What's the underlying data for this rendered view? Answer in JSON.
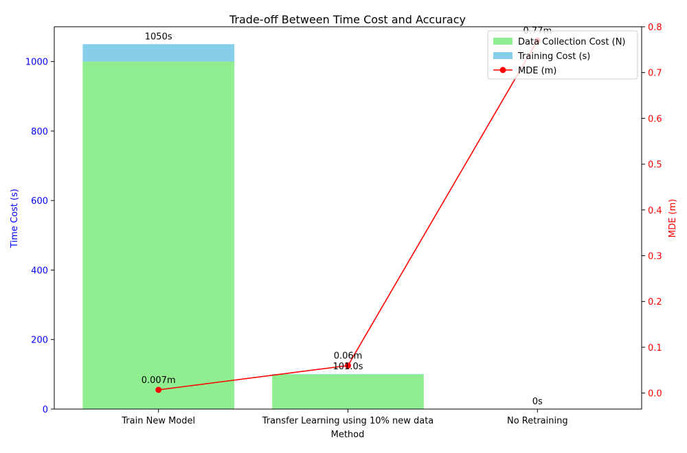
{
  "chart_data": {
    "type": "bar",
    "title": "Trade-off Between Time Cost and Accuracy",
    "xlabel": "Method",
    "ylabel_left": "Time Cost (s)",
    "ylabel_right": "MDE (m)",
    "categories": [
      "Train New Model",
      "Transfer Learning using 10% new data",
      "No Retraining"
    ],
    "bar_series": [
      {
        "name": "Data Collection Cost (N)",
        "values": [
          1000,
          100,
          0
        ],
        "color": "#90ee90"
      },
      {
        "name": "Training Cost (s)",
        "values": [
          50,
          1,
          0
        ],
        "color": "#87ceeb"
      }
    ],
    "line_series": {
      "name": "MDE (m)",
      "values": [
        0.007,
        0.06,
        0.77
      ],
      "color": "#ff0000"
    },
    "bar_labels": [
      "1050s",
      "101.0s",
      "0s"
    ],
    "line_labels": [
      "0.007m",
      "0.06m",
      "0.77m"
    ],
    "ylim_left": [
      0,
      1100
    ],
    "yticks_left": [
      0,
      200,
      400,
      600,
      800,
      1000
    ],
    "ylim_right": [
      -0.035,
      0.8
    ],
    "yticks_right": [
      0.0,
      0.1,
      0.2,
      0.3,
      0.4,
      0.5,
      0.6,
      0.7,
      0.8
    ],
    "left_axis_color": "#0000ff",
    "right_axis_color": "#ff0000",
    "legend_position": "top-right"
  }
}
